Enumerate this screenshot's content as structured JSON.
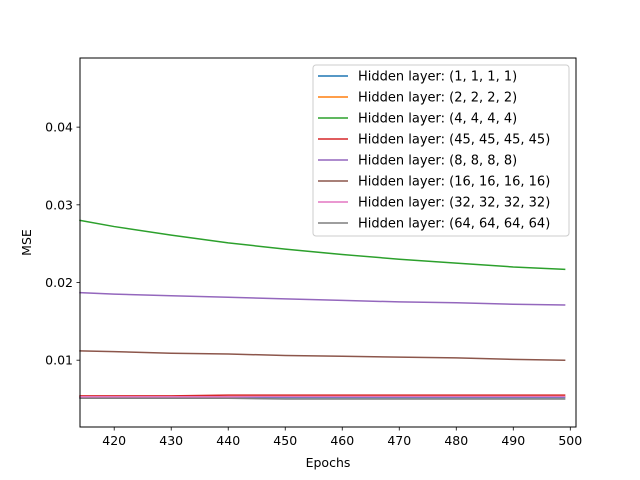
{
  "chart_data": {
    "type": "line",
    "title": "",
    "xlabel": "Epochs",
    "ylabel": "MSE",
    "xlim": [
      414,
      501
    ],
    "ylim": [
      0.0014,
      0.0489
    ],
    "xticks": [
      420,
      430,
      440,
      450,
      460,
      470,
      480,
      490,
      500
    ],
    "yticks": [
      0.01,
      0.02,
      0.03,
      0.04
    ],
    "x": [
      414,
      420,
      430,
      440,
      450,
      460,
      470,
      480,
      490,
      499
    ],
    "legend_location": "upper right",
    "grid": false,
    "series": [
      {
        "name": "Hidden layer: (1, 1, 1, 1)",
        "color": "#1f77b4",
        "values": [
          0.0052,
          0.0052,
          0.0052,
          0.0052,
          0.0052,
          0.0052,
          0.0052,
          0.0052,
          0.0052,
          0.0052
        ]
      },
      {
        "name": "Hidden layer: (2, 2, 2, 2)",
        "color": "#ff7f0e",
        "values": [
          0.0053,
          0.0053,
          0.0053,
          0.0053,
          0.0053,
          0.0053,
          0.0053,
          0.0053,
          0.0053,
          0.0053
        ]
      },
      {
        "name": "Hidden layer: (4, 4, 4, 4)",
        "color": "#2ca02c",
        "values": [
          0.028,
          0.0272,
          0.0261,
          0.0251,
          0.0243,
          0.0236,
          0.023,
          0.0225,
          0.022,
          0.0217
        ]
      },
      {
        "name": "Hidden layer: (45, 45, 45, 45)",
        "color": "#d62728",
        "values": [
          0.0054,
          0.0054,
          0.0054,
          0.0055,
          0.0055,
          0.0055,
          0.0055,
          0.0055,
          0.0055,
          0.0055
        ]
      },
      {
        "name": "Hidden layer: (8, 8, 8, 8)",
        "color": "#9467bd",
        "values": [
          0.0187,
          0.0185,
          0.0183,
          0.0181,
          0.0179,
          0.0177,
          0.0175,
          0.0174,
          0.0172,
          0.0171
        ]
      },
      {
        "name": "Hidden layer: (16, 16, 16, 16)",
        "color": "#8c564b",
        "values": [
          0.0112,
          0.0111,
          0.0109,
          0.0108,
          0.0106,
          0.0105,
          0.0104,
          0.0103,
          0.0101,
          0.01
        ]
      },
      {
        "name": "Hidden layer: (32, 32, 32, 32)",
        "color": "#e377c2",
        "values": [
          0.0053,
          0.0053,
          0.0053,
          0.0053,
          0.0053,
          0.0053,
          0.0053,
          0.0053,
          0.0053,
          0.0053
        ]
      },
      {
        "name": "Hidden layer: (64, 64, 64, 64)",
        "color": "#7f7f7f",
        "values": [
          0.0051,
          0.0051,
          0.0051,
          0.0051,
          0.005,
          0.005,
          0.005,
          0.005,
          0.005,
          0.005
        ]
      }
    ]
  }
}
